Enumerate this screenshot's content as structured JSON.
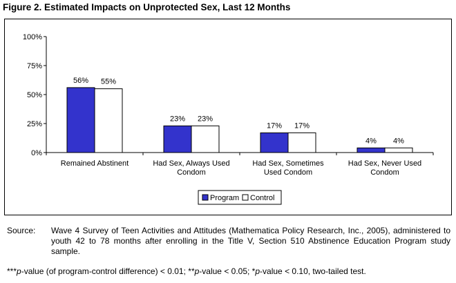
{
  "figure": {
    "title": "Figure 2.  Estimated Impacts on Unprotected Sex, Last 12 Months"
  },
  "chart_data": {
    "type": "bar",
    "categories": [
      [
        "Remained Abstinent"
      ],
      [
        "Had Sex, Always Used",
        "Condom"
      ],
      [
        "Had Sex, Sometimes",
        "Used Condom"
      ],
      [
        "Had Sex, Never Used",
        "Condom"
      ]
    ],
    "series": [
      {
        "name": "Program",
        "values": [
          56,
          23,
          17,
          4
        ],
        "labels": [
          "56%",
          "23%",
          "17%",
          "4%"
        ],
        "color": "#3333cc"
      },
      {
        "name": "Control",
        "values": [
          55,
          23,
          17,
          4
        ],
        "labels": [
          "55%",
          "23%",
          "17%",
          "4%"
        ],
        "color": "#ffffff"
      }
    ],
    "ylim": [
      0,
      100
    ],
    "yticks": [
      0,
      25,
      50,
      75,
      100
    ],
    "ytick_labels": [
      "0%",
      "25%",
      "50%",
      "75%",
      "100%"
    ],
    "grid": false,
    "legend_position": "bottom-center"
  },
  "source": {
    "label": "Source:",
    "text": "Wave 4 Survey of Teen Activities and Attitudes (Mathematica Policy Research, Inc., 2005), administered to youth 42 to 78 months after enrolling in the Title V, Section 510 Abstinence Education Program study sample."
  },
  "footnote": {
    "p1_prefix": "***",
    "p_label": "p",
    "p1_suffix": "-value (of program-control difference) < 0.01; **",
    "p2_suffix": "-value < 0.05; *",
    "p3_suffix": "-value < 0.10, two-tailed test."
  }
}
